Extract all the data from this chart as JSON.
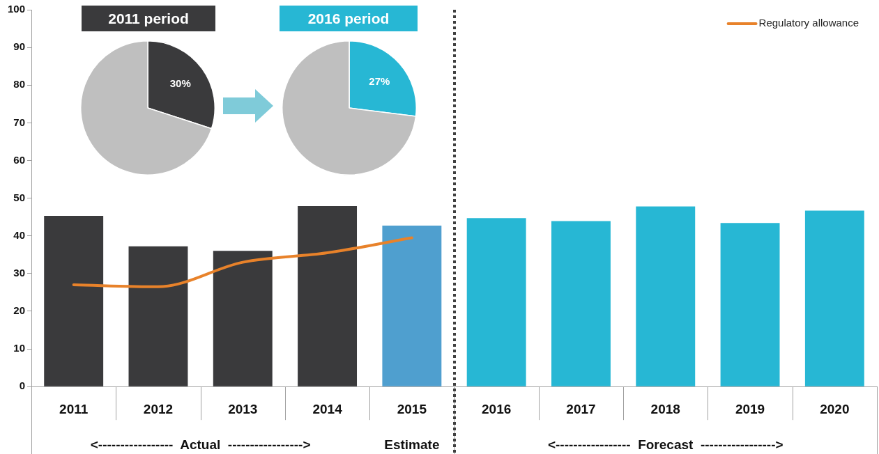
{
  "chart_data": [
    {
      "type": "bar",
      "categories": [
        "2011",
        "2012",
        "2013",
        "2014",
        "2015",
        "2016",
        "2017",
        "2018",
        "2019",
        "2020"
      ],
      "series": [
        {
          "type": "bar",
          "colors": [
            "#3a3a3c",
            "#3a3a3c",
            "#3a3a3c",
            "#3a3a3c",
            "#4f9fcf",
            "#27b7d4",
            "#27b7d4",
            "#27b7d4",
            "#27b7d4",
            "#27b7d4"
          ],
          "values": [
            45.3,
            37.2,
            36.0,
            47.9,
            42.7,
            44.7,
            43.9,
            47.8,
            43.4,
            46.7
          ]
        },
        {
          "type": "line",
          "name": "Regulatory allowance",
          "color": "#e8822a",
          "values": [
            27.0,
            26.5,
            33.0,
            35.5,
            39.5,
            null,
            null,
            null,
            null,
            null
          ]
        }
      ],
      "ylim": [
        0,
        100
      ],
      "yticks": [
        0,
        10,
        20,
        30,
        40,
        50,
        60,
        70,
        80,
        90,
        100
      ],
      "grid": false,
      "legend": "top right",
      "marker": "none",
      "line_style": "solid",
      "annotations": [
        "<-----------------  Actual  ----------------->",
        "Estimate",
        "<-----------------  Forecast  ----------------->"
      ]
    },
    {
      "type": "pie",
      "title": "2011 period",
      "categories": [
        null,
        null
      ],
      "values": [
        30,
        70
      ],
      "colors": [
        "#3a3a3c",
        "#bfbfbf"
      ],
      "value_labels": [
        "30%",
        null
      ]
    },
    {
      "type": "pie",
      "title": "2016 period",
      "categories": [
        null,
        null
      ],
      "values": [
        27,
        73
      ],
      "colors": [
        "#27b7d4",
        "#bfbfbf"
      ],
      "value_labels": [
        "27%",
        null
      ]
    }
  ]
}
